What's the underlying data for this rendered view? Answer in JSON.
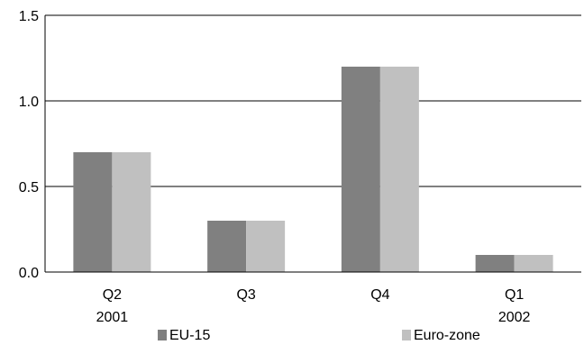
{
  "chart_data": {
    "type": "bar",
    "title": "",
    "xlabel": "",
    "ylabel": "",
    "ylim": [
      0,
      1.5
    ],
    "yticks": [
      "0.0",
      "0.5",
      "1.0",
      "1.5"
    ],
    "grid": true,
    "legend": "bottom",
    "categories": [
      {
        "line1": "Q2",
        "line2": "2001"
      },
      {
        "line1": "Q3",
        "line2": ""
      },
      {
        "line1": "Q4",
        "line2": ""
      },
      {
        "line1": "Q1",
        "line2": "2002"
      }
    ],
    "series": [
      {
        "name": "EU-15",
        "color": "#808080",
        "values": [
          0.7,
          0.3,
          1.2,
          0.1
        ]
      },
      {
        "name": "Euro-zone",
        "color": "#c0c0c0",
        "values": [
          0.7,
          0.3,
          1.2,
          0.1
        ]
      }
    ]
  }
}
